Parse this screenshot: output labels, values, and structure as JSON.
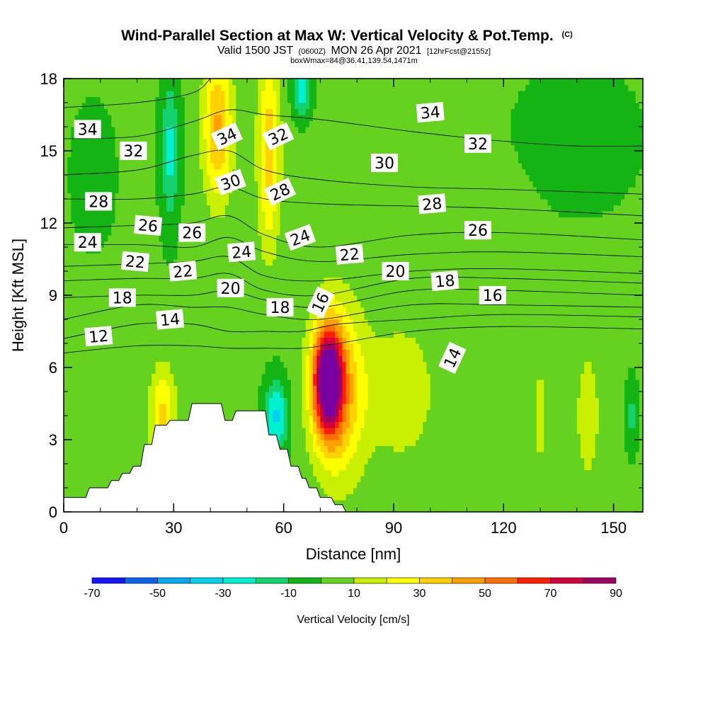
{
  "chart_data": {
    "type": "heatmap",
    "title": {
      "main": "Wind-Parallel Section at Max W: Vertical Velocity & Pot.Temp.",
      "copyright": "(C)",
      "valid_prefix": "Valid 1500 JST",
      "valid_z": "(0600Z)",
      "valid_date": "MON 26 Apr 2021",
      "forecast": "[12hrFcst@2155z]",
      "box": "boxWmax=84@36.41,139.54,1471m"
    },
    "xlabel": "Distance [nm]",
    "ylabel": "Height [Kft MSL]",
    "xlim": [
      0,
      158
    ],
    "ylim": [
      0,
      18
    ],
    "x_ticks": [
      0,
      30,
      60,
      90,
      120,
      150
    ],
    "x_tick_labels": [
      "0",
      "30",
      "60",
      "90",
      "120",
      "150"
    ],
    "y_ticks": [
      0,
      3,
      6,
      9,
      12,
      15,
      18
    ],
    "y_tick_labels": [
      "0",
      "3",
      "6",
      "9",
      "12",
      "15",
      "18"
    ],
    "colorbar": {
      "title": "Vertical Velocity [cm/s]",
      "boundaries": [
        -70,
        -60,
        -50,
        -40,
        -30,
        -20,
        -10,
        0,
        10,
        20,
        30,
        40,
        50,
        60,
        70,
        80,
        90
      ],
      "tick_values": [
        -70,
        -50,
        -30,
        -10,
        10,
        30,
        50,
        70,
        90
      ],
      "tick_labels": [
        "-70",
        "-50",
        "-30",
        "-10",
        "10",
        "30",
        "50",
        "70",
        "90"
      ],
      "colors": [
        "#1414ff",
        "#0a64f0",
        "#00aaf0",
        "#00d2f0",
        "#00f0d2",
        "#14d26e",
        "#14b414",
        "#64d21e",
        "#c8f000",
        "#ffff00",
        "#ffd200",
        "#ffa000",
        "#ff6e00",
        "#ff1e00",
        "#d2003c",
        "#a00064",
        "#7800a0"
      ]
    },
    "velocity_features": [
      {
        "x": 72,
        "y": 5.5,
        "sx": 4.0,
        "sy": 2.2,
        "w": 90
      },
      {
        "x": 75,
        "y": 5.0,
        "sx": 7.0,
        "sy": 3.5,
        "w": 40
      },
      {
        "x": 58,
        "y": 4.0,
        "sx": 3.0,
        "sy": 1.5,
        "w": -35
      },
      {
        "x": 27,
        "y": 4.0,
        "sx": 3.5,
        "sy": 2.0,
        "w": 30
      },
      {
        "x": 42,
        "y": 16.0,
        "sx": 4.0,
        "sy": 3.0,
        "w": 40
      },
      {
        "x": 56,
        "y": 15.0,
        "sx": 3.0,
        "sy": 4.0,
        "w": 35
      },
      {
        "x": 29,
        "y": 15.0,
        "sx": 2.5,
        "sy": 3.0,
        "w": -25
      },
      {
        "x": 65,
        "y": 17.5,
        "sx": 2.5,
        "sy": 1.0,
        "w": -30
      },
      {
        "x": 92,
        "y": 5.0,
        "sx": 10.0,
        "sy": 3.0,
        "w": 15
      },
      {
        "x": 143,
        "y": 4.0,
        "sx": 3.0,
        "sy": 2.5,
        "w": 18
      },
      {
        "x": 130,
        "y": 4.0,
        "sx": 2.0,
        "sy": 2.5,
        "w": 12
      },
      {
        "x": 155,
        "y": 4.0,
        "sx": 1.5,
        "sy": 1.5,
        "w": -15
      },
      {
        "x": 140,
        "y": 15.5,
        "sx": 14.0,
        "sy": 2.5,
        "w": -12
      },
      {
        "x": 8,
        "y": 14.0,
        "sx": 5.0,
        "sy": 2.5,
        "w": -12
      },
      {
        "x": 120,
        "y": 12.0,
        "sx": 8.0,
        "sy": 2.0,
        "w": 8
      }
    ],
    "terrain": [
      [
        0,
        0.6
      ],
      [
        6,
        0.6
      ],
      [
        7,
        1.0
      ],
      [
        12,
        1.0
      ],
      [
        13,
        1.3
      ],
      [
        15,
        1.3
      ],
      [
        16,
        1.6
      ],
      [
        18,
        1.6
      ],
      [
        19,
        1.9
      ],
      [
        21,
        1.9
      ],
      [
        22,
        2.8
      ],
      [
        24,
        2.8
      ],
      [
        25,
        3.6
      ],
      [
        28,
        3.6
      ],
      [
        29,
        3.8
      ],
      [
        34,
        3.8
      ],
      [
        35,
        4.5
      ],
      [
        43,
        4.5
      ],
      [
        44,
        3.8
      ],
      [
        46,
        3.8
      ],
      [
        47,
        4.2
      ],
      [
        55,
        4.2
      ],
      [
        56,
        3.2
      ],
      [
        58,
        3.2
      ],
      [
        59,
        2.6
      ],
      [
        61,
        2.6
      ],
      [
        62,
        1.9
      ],
      [
        64,
        1.9
      ],
      [
        65,
        1.4
      ],
      [
        66,
        1.4
      ],
      [
        67,
        1.0
      ],
      [
        69,
        1.0
      ],
      [
        70,
        0.6
      ],
      [
        73,
        0.6
      ],
      [
        74,
        0.3
      ],
      [
        76,
        0.3
      ],
      [
        77,
        0
      ]
    ],
    "theta_contours": [
      {
        "value": 34,
        "pts": [
          [
            0,
            16.8
          ],
          [
            20,
            17.0
          ],
          [
            35,
            17.4
          ],
          [
            40,
            18.0
          ]
        ]
      },
      {
        "value": 32,
        "pts": [
          [
            0,
            15.5
          ],
          [
            20,
            15.6
          ],
          [
            35,
            16.2
          ],
          [
            45,
            16.7
          ],
          [
            55,
            16.5
          ],
          [
            70,
            16.3
          ],
          [
            95,
            15.8
          ],
          [
            120,
            15.4
          ],
          [
            140,
            15.2
          ],
          [
            158,
            15.2
          ]
        ]
      },
      {
        "value": 30,
        "pts": [
          [
            0,
            14.0
          ],
          [
            20,
            14.2
          ],
          [
            35,
            14.8
          ],
          [
            45,
            15.0
          ],
          [
            55,
            14.2
          ],
          [
            70,
            13.8
          ],
          [
            95,
            13.5
          ],
          [
            120,
            13.4
          ],
          [
            158,
            13.2
          ]
        ]
      },
      {
        "value": 28,
        "pts": [
          [
            0,
            13.0
          ],
          [
            20,
            13.0
          ],
          [
            35,
            13.2
          ],
          [
            45,
            13.5
          ],
          [
            55,
            13.0
          ],
          [
            70,
            12.8
          ],
          [
            95,
            12.7
          ],
          [
            120,
            12.6
          ],
          [
            158,
            12.3
          ]
        ]
      },
      {
        "value": 26,
        "pts": [
          [
            0,
            11.8
          ],
          [
            20,
            11.9
          ],
          [
            35,
            12.0
          ],
          [
            45,
            12.3
          ],
          [
            55,
            11.5
          ],
          [
            70,
            11.0
          ],
          [
            95,
            11.5
          ],
          [
            120,
            11.6
          ],
          [
            158,
            11.3
          ]
        ]
      },
      {
        "value": 24,
        "pts": [
          [
            0,
            11.1
          ],
          [
            20,
            11.1
          ],
          [
            35,
            11.0
          ],
          [
            45,
            11.4
          ],
          [
            55,
            10.8
          ],
          [
            70,
            10.4
          ],
          [
            95,
            10.7
          ],
          [
            120,
            10.8
          ],
          [
            158,
            10.6
          ]
        ]
      },
      {
        "value": 22,
        "pts": [
          [
            0,
            10.2
          ],
          [
            20,
            10.3
          ],
          [
            35,
            10.4
          ],
          [
            45,
            10.6
          ],
          [
            55,
            9.8
          ],
          [
            70,
            9.6
          ],
          [
            95,
            10.0
          ],
          [
            120,
            10.1
          ],
          [
            158,
            9.9
          ]
        ]
      },
      {
        "value": 20,
        "pts": [
          [
            0,
            9.6
          ],
          [
            20,
            9.7
          ],
          [
            35,
            9.7
          ],
          [
            45,
            9.9
          ],
          [
            55,
            9.2
          ],
          [
            70,
            9.0
          ],
          [
            95,
            9.7
          ],
          [
            120,
            9.7
          ],
          [
            158,
            9.5
          ]
        ]
      },
      {
        "value": 18,
        "pts": [
          [
            0,
            8.9
          ],
          [
            20,
            9.0
          ],
          [
            35,
            9.0
          ],
          [
            45,
            9.2
          ],
          [
            55,
            8.8
          ],
          [
            70,
            8.5
          ],
          [
            95,
            9.2
          ],
          [
            120,
            9.2
          ],
          [
            158,
            9.0
          ]
        ]
      },
      {
        "value": 16,
        "pts": [
          [
            0,
            8.0
          ],
          [
            20,
            8.6
          ],
          [
            35,
            8.5
          ],
          [
            45,
            8.5
          ],
          [
            55,
            8.2
          ],
          [
            70,
            8.0
          ],
          [
            95,
            8.6
          ],
          [
            120,
            8.6
          ],
          [
            158,
            8.5
          ]
        ]
      },
      {
        "value": 14,
        "pts": [
          [
            0,
            7.2
          ],
          [
            20,
            7.8
          ],
          [
            35,
            7.8
          ],
          [
            45,
            7.5
          ],
          [
            55,
            7.5
          ],
          [
            65,
            7.5
          ],
          [
            75,
            7.8
          ],
          [
            95,
            8.0
          ],
          [
            120,
            8.2
          ],
          [
            158,
            8.1
          ]
        ]
      },
      {
        "value": 12,
        "pts": [
          [
            0,
            6.6
          ],
          [
            20,
            6.9
          ],
          [
            35,
            6.9
          ],
          [
            45,
            6.8
          ],
          [
            55,
            6.8
          ],
          [
            65,
            6.8
          ],
          [
            75,
            7.0
          ],
          [
            95,
            7.5
          ],
          [
            120,
            7.7
          ],
          [
            158,
            7.6
          ]
        ]
      }
    ],
    "theta_labels": [
      {
        "text": "34",
        "x": 6.5,
        "y": 15.9,
        "angle": 0
      },
      {
        "text": "32",
        "x": 19,
        "y": 15.0,
        "angle": 0
      },
      {
        "text": "28",
        "x": 9.5,
        "y": 12.9,
        "angle": 0
      },
      {
        "text": "26",
        "x": 23,
        "y": 11.9,
        "angle": 5
      },
      {
        "text": "26",
        "x": 35,
        "y": 11.6,
        "angle": 0
      },
      {
        "text": "24",
        "x": 6.5,
        "y": 11.2,
        "angle": 0
      },
      {
        "text": "22",
        "x": 19.5,
        "y": 10.4,
        "angle": 5
      },
      {
        "text": "22",
        "x": 32.5,
        "y": 10.0,
        "angle": -5
      },
      {
        "text": "18",
        "x": 16,
        "y": 8.9,
        "angle": 0
      },
      {
        "text": "14",
        "x": 29,
        "y": 8.0,
        "angle": -5
      },
      {
        "text": "12",
        "x": 9.5,
        "y": 7.3,
        "angle": -5
      },
      {
        "text": "34",
        "x": 44.5,
        "y": 15.6,
        "angle": -25
      },
      {
        "text": "32",
        "x": 58.5,
        "y": 15.6,
        "angle": -25
      },
      {
        "text": "30",
        "x": 45.5,
        "y": 13.7,
        "angle": -20
      },
      {
        "text": "28",
        "x": 59,
        "y": 13.3,
        "angle": -25
      },
      {
        "text": "24",
        "x": 48.5,
        "y": 10.8,
        "angle": -5
      },
      {
        "text": "24",
        "x": 64.5,
        "y": 11.4,
        "angle": -20
      },
      {
        "text": "20",
        "x": 45.5,
        "y": 9.3,
        "angle": 0
      },
      {
        "text": "18",
        "x": 59,
        "y": 8.5,
        "angle": 0
      },
      {
        "text": "16",
        "x": 70,
        "y": 8.7,
        "angle": -65
      },
      {
        "text": "22",
        "x": 78,
        "y": 10.7,
        "angle": -5
      },
      {
        "text": "20",
        "x": 90.5,
        "y": 10.0,
        "angle": 0
      },
      {
        "text": "18",
        "x": 104,
        "y": 9.6,
        "angle": -5
      },
      {
        "text": "16",
        "x": 117,
        "y": 9.0,
        "angle": 0
      },
      {
        "text": "34",
        "x": 100,
        "y": 16.6,
        "angle": -5
      },
      {
        "text": "32",
        "x": 113,
        "y": 15.3,
        "angle": 0
      },
      {
        "text": "30",
        "x": 87.5,
        "y": 14.5,
        "angle": 0
      },
      {
        "text": "28",
        "x": 100.5,
        "y": 12.8,
        "angle": -5
      },
      {
        "text": "26",
        "x": 113,
        "y": 11.7,
        "angle": 0
      },
      {
        "text": "14",
        "x": 106,
        "y": 6.4,
        "angle": -65
      }
    ],
    "grid": false,
    "legend": "bottom"
  }
}
